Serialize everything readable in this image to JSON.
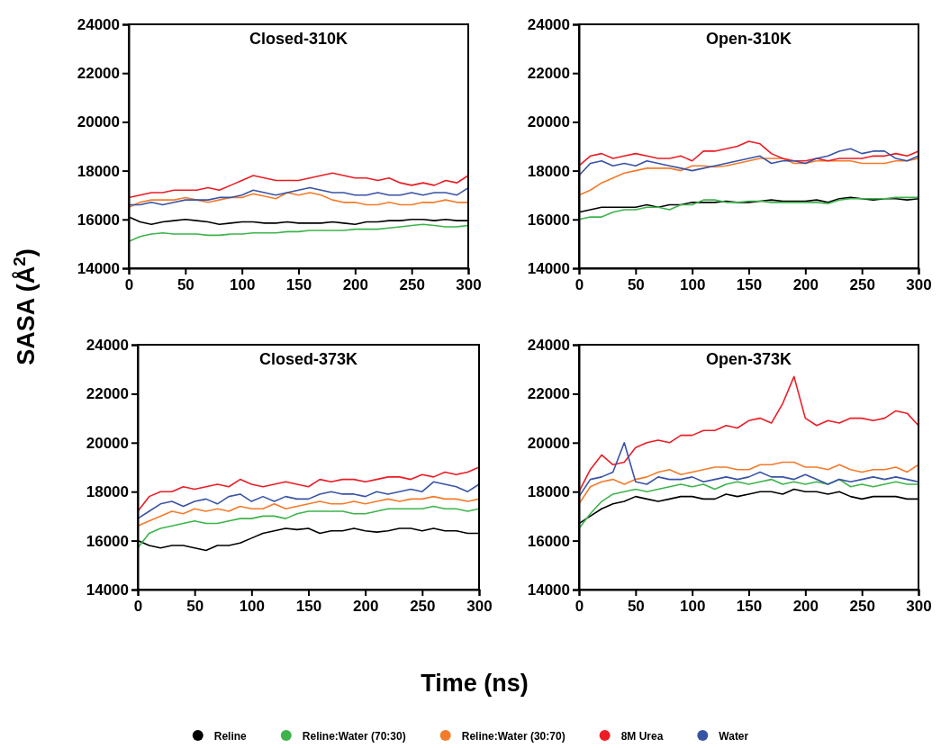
{
  "chart_data": [
    {
      "type": "line",
      "title": "Closed-310K",
      "ylabel": "SASA (Å$^{2}$)",
      "legend": "bottom",
      "xlim": [
        0,
        300
      ],
      "xticks": [
        0,
        50,
        100,
        150,
        200,
        250,
        300
      ],
      "ylim": [
        14000,
        24000
      ],
      "yticks": [
        14000,
        16000,
        18000,
        20000,
        22000,
        24000
      ],
      "x": [
        0,
        10,
        20,
        30,
        40,
        50,
        60,
        70,
        80,
        90,
        100,
        110,
        120,
        130,
        140,
        150,
        160,
        170,
        180,
        190,
        200,
        210,
        220,
        230,
        240,
        250,
        260,
        270,
        280,
        290,
        300
      ],
      "series": [
        {
          "name": "Reline",
          "color": "#000000",
          "values": [
            16100,
            15900,
            15800,
            15900,
            15950,
            16000,
            15950,
            15900,
            15800,
            15850,
            15900,
            15900,
            15850,
            15850,
            15900,
            15850,
            15850,
            15850,
            15900,
            15850,
            15800,
            15900,
            15900,
            15950,
            15950,
            16000,
            16000,
            15950,
            16000,
            15950,
            15950
          ]
        },
        {
          "name": "Reline:Water (70:30)",
          "color": "#3cb44b",
          "values": [
            15100,
            15300,
            15400,
            15450,
            15400,
            15400,
            15400,
            15350,
            15350,
            15400,
            15400,
            15450,
            15450,
            15450,
            15500,
            15500,
            15550,
            15550,
            15550,
            15550,
            15600,
            15600,
            15600,
            15650,
            15700,
            15750,
            15800,
            15750,
            15700,
            15700,
            15750
          ]
        },
        {
          "name": "Reline:Water (30:70)",
          "color": "#f47b2a",
          "values": [
            16500,
            16700,
            16800,
            16800,
            16800,
            16900,
            16800,
            16700,
            16800,
            16900,
            16900,
            17050,
            16950,
            16850,
            17100,
            17000,
            17100,
            17000,
            16800,
            16700,
            16700,
            16600,
            16600,
            16700,
            16600,
            16600,
            16700,
            16700,
            16800,
            16700,
            16700
          ]
        },
        {
          "name": "8M Urea",
          "color": "#ec1c24",
          "values": [
            16900,
            17000,
            17100,
            17100,
            17200,
            17200,
            17200,
            17300,
            17200,
            17400,
            17600,
            17800,
            17700,
            17600,
            17600,
            17600,
            17700,
            17800,
            17900,
            17800,
            17700,
            17700,
            17600,
            17700,
            17500,
            17400,
            17500,
            17400,
            17600,
            17500,
            17800
          ]
        },
        {
          "name": "Water",
          "color": "#3953a4",
          "values": [
            16600,
            16600,
            16700,
            16600,
            16700,
            16800,
            16800,
            16800,
            16900,
            16900,
            17000,
            17200,
            17100,
            17000,
            17100,
            17200,
            17300,
            17200,
            17100,
            17100,
            17000,
            17000,
            17100,
            17000,
            17000,
            17100,
            17000,
            17100,
            17100,
            17000,
            17300
          ]
        }
      ]
    },
    {
      "type": "line",
      "title": "Open-310K",
      "xlim": [
        0,
        300
      ],
      "xticks": [
        0,
        50,
        100,
        150,
        200,
        250,
        300
      ],
      "ylim": [
        14000,
        24000
      ],
      "yticks": [
        14000,
        16000,
        18000,
        20000,
        22000,
        24000
      ],
      "x": [
        0,
        10,
        20,
        30,
        40,
        50,
        60,
        70,
        80,
        90,
        100,
        110,
        120,
        130,
        140,
        150,
        160,
        170,
        180,
        190,
        200,
        210,
        220,
        230,
        240,
        250,
        260,
        270,
        280,
        290,
        300
      ],
      "series": [
        {
          "color": "#000000",
          "values": [
            16300,
            16400,
            16500,
            16500,
            16500,
            16500,
            16600,
            16500,
            16600,
            16600,
            16700,
            16700,
            16700,
            16750,
            16700,
            16700,
            16750,
            16800,
            16750,
            16750,
            16750,
            16800,
            16700,
            16850,
            16900,
            16850,
            16800,
            16850,
            16850,
            16800,
            16850
          ]
        },
        {
          "color": "#3cb44b",
          "values": [
            16000,
            16100,
            16100,
            16300,
            16400,
            16400,
            16500,
            16500,
            16400,
            16600,
            16600,
            16800,
            16800,
            16700,
            16700,
            16750,
            16750,
            16700,
            16700,
            16700,
            16700,
            16700,
            16650,
            16800,
            16850,
            16850,
            16850,
            16850,
            16900,
            16900,
            16900
          ]
        },
        {
          "color": "#f47b2a",
          "values": [
            17000,
            17200,
            17500,
            17700,
            17900,
            18000,
            18100,
            18100,
            18100,
            18000,
            18200,
            18200,
            18150,
            18200,
            18300,
            18400,
            18500,
            18500,
            18500,
            18300,
            18300,
            18400,
            18400,
            18400,
            18400,
            18300,
            18300,
            18300,
            18400,
            18400,
            18500
          ]
        },
        {
          "color": "#ec1c24",
          "values": [
            18200,
            18600,
            18700,
            18500,
            18600,
            18700,
            18600,
            18500,
            18500,
            18600,
            18400,
            18800,
            18800,
            18900,
            19000,
            19200,
            19100,
            18700,
            18500,
            18400,
            18400,
            18500,
            18400,
            18500,
            18500,
            18500,
            18600,
            18600,
            18700,
            18600,
            18800
          ]
        },
        {
          "color": "#3953a4",
          "values": [
            17800,
            18300,
            18400,
            18200,
            18300,
            18200,
            18400,
            18300,
            18200,
            18100,
            18000,
            18100,
            18200,
            18300,
            18400,
            18500,
            18600,
            18300,
            18400,
            18400,
            18300,
            18500,
            18600,
            18800,
            18900,
            18700,
            18800,
            18800,
            18500,
            18400,
            18600
          ]
        }
      ]
    },
    {
      "type": "line",
      "title": "Closed-373K",
      "xlabel": "Time (ns)",
      "xlim": [
        0,
        300
      ],
      "xticks": [
        0,
        50,
        100,
        150,
        200,
        250,
        300
      ],
      "ylim": [
        14000,
        24000
      ],
      "yticks": [
        14000,
        16000,
        18000,
        20000,
        22000,
        24000
      ],
      "x": [
        0,
        10,
        20,
        30,
        40,
        50,
        60,
        70,
        80,
        90,
        100,
        110,
        120,
        130,
        140,
        150,
        160,
        170,
        180,
        190,
        200,
        210,
        220,
        230,
        240,
        250,
        260,
        270,
        280,
        290,
        300
      ],
      "series": [
        {
          "color": "#000000",
          "values": [
            16000,
            15800,
            15700,
            15800,
            15800,
            15700,
            15600,
            15800,
            15800,
            15900,
            16100,
            16300,
            16400,
            16500,
            16450,
            16500,
            16300,
            16400,
            16400,
            16500,
            16400,
            16350,
            16400,
            16500,
            16500,
            16400,
            16500,
            16400,
            16400,
            16300,
            16300
          ]
        },
        {
          "color": "#3cb44b",
          "values": [
            15700,
            16300,
            16500,
            16600,
            16700,
            16800,
            16700,
            16700,
            16800,
            16900,
            16900,
            17000,
            17000,
            16900,
            17100,
            17200,
            17200,
            17200,
            17200,
            17100,
            17100,
            17200,
            17300,
            17300,
            17300,
            17300,
            17400,
            17300,
            17300,
            17200,
            17300
          ]
        },
        {
          "color": "#f47b2a",
          "values": [
            16600,
            16800,
            17000,
            17200,
            17100,
            17300,
            17200,
            17300,
            17200,
            17400,
            17300,
            17300,
            17500,
            17300,
            17400,
            17500,
            17600,
            17500,
            17500,
            17600,
            17500,
            17600,
            17700,
            17600,
            17700,
            17700,
            17800,
            17700,
            17700,
            17600,
            17700
          ]
        },
        {
          "color": "#ec1c24",
          "values": [
            17200,
            17800,
            18000,
            18000,
            18200,
            18100,
            18200,
            18300,
            18200,
            18500,
            18300,
            18200,
            18300,
            18400,
            18300,
            18200,
            18500,
            18400,
            18500,
            18500,
            18400,
            18500,
            18600,
            18600,
            18500,
            18700,
            18600,
            18800,
            18700,
            18800,
            19000
          ]
        },
        {
          "color": "#3953a4",
          "values": [
            16900,
            17200,
            17500,
            17600,
            17400,
            17600,
            17700,
            17500,
            17800,
            17900,
            17600,
            17800,
            17600,
            17800,
            17700,
            17700,
            17900,
            18000,
            17900,
            17900,
            17800,
            18000,
            17900,
            18000,
            18100,
            18000,
            18400,
            18300,
            18200,
            18000,
            18300
          ]
        }
      ]
    },
    {
      "type": "line",
      "title": "Open-373K",
      "xlim": [
        0,
        300
      ],
      "xticks": [
        0,
        50,
        100,
        150,
        200,
        250,
        300
      ],
      "ylim": [
        14000,
        24000
      ],
      "yticks": [
        14000,
        16000,
        18000,
        20000,
        22000,
        24000
      ],
      "x": [
        0,
        10,
        20,
        30,
        40,
        50,
        60,
        70,
        80,
        90,
        100,
        110,
        120,
        130,
        140,
        150,
        160,
        170,
        180,
        190,
        200,
        210,
        220,
        230,
        240,
        250,
        260,
        270,
        280,
        290,
        300
      ],
      "series": [
        {
          "color": "#000000",
          "values": [
            16700,
            17000,
            17300,
            17500,
            17600,
            17800,
            17700,
            17600,
            17700,
            17800,
            17800,
            17700,
            17700,
            17900,
            17800,
            17900,
            18000,
            18000,
            17900,
            18100,
            18000,
            18000,
            17900,
            18000,
            17800,
            17700,
            17800,
            17800,
            17800,
            17700,
            17700
          ]
        },
        {
          "color": "#3cb44b",
          "values": [
            16500,
            17100,
            17600,
            17900,
            18000,
            18100,
            18000,
            18100,
            18200,
            18300,
            18200,
            18300,
            18100,
            18300,
            18400,
            18300,
            18400,
            18500,
            18300,
            18400,
            18300,
            18400,
            18300,
            18500,
            18200,
            18300,
            18200,
            18300,
            18400,
            18300,
            18300
          ]
        },
        {
          "color": "#f47b2a",
          "values": [
            17500,
            18200,
            18400,
            18500,
            18300,
            18500,
            18600,
            18800,
            18900,
            18700,
            18800,
            18900,
            19000,
            19000,
            18900,
            18900,
            19100,
            19100,
            19200,
            19200,
            19000,
            19000,
            18900,
            19100,
            18900,
            18800,
            18900,
            18900,
            19000,
            18800,
            19100
          ]
        },
        {
          "color": "#ec1c24",
          "values": [
            18000,
            18900,
            19500,
            19100,
            19200,
            19800,
            20000,
            20100,
            20000,
            20300,
            20300,
            20500,
            20500,
            20700,
            20600,
            20900,
            21000,
            20800,
            21600,
            22700,
            21000,
            20700,
            20900,
            20800,
            21000,
            21000,
            20900,
            21000,
            21300,
            21200,
            20700
          ]
        },
        {
          "color": "#3953a4",
          "values": [
            17800,
            18500,
            18600,
            18800,
            20000,
            18400,
            18300,
            18600,
            18500,
            18500,
            18600,
            18400,
            18500,
            18600,
            18500,
            18600,
            18800,
            18600,
            18600,
            18500,
            18700,
            18500,
            18300,
            18500,
            18400,
            18500,
            18600,
            18500,
            18600,
            18500,
            18400
          ]
        }
      ]
    }
  ]
}
